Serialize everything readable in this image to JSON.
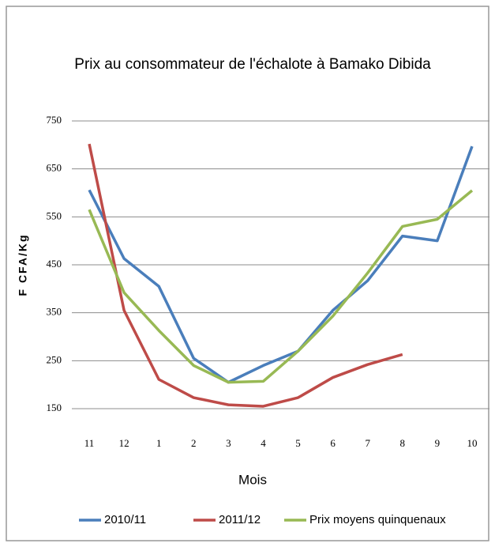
{
  "chart_data": {
    "type": "line",
    "title": "Prix au consommateur de l'échalote à Bamako Dibida",
    "xlabel": "Mois",
    "ylabel": "F CFA/Kg",
    "categories": [
      "11",
      "12",
      "1",
      "2",
      "3",
      "4",
      "5",
      "6",
      "7",
      "8",
      "9",
      "10"
    ],
    "series": [
      {
        "name": "2010/11",
        "color": "#4a7ebb",
        "values": [
          606,
          463,
          405,
          255,
          205,
          240,
          270,
          355,
          417,
          510,
          500,
          697
        ]
      },
      {
        "name": "2011/12",
        "color": "#be4b48",
        "values": [
          702,
          355,
          211,
          173,
          158,
          155,
          173,
          215,
          242,
          263,
          null,
          null
        ]
      },
      {
        "name": "Prix moyens quinquenaux",
        "color": "#98b954",
        "values": [
          565,
          392,
          313,
          240,
          205,
          207,
          270,
          343,
          433,
          530,
          545,
          605
        ]
      }
    ],
    "ylim": [
      150,
      750
    ],
    "yticks": [
      150,
      250,
      350,
      450,
      550,
      650,
      750
    ],
    "grid": true,
    "legend": "bottom"
  }
}
